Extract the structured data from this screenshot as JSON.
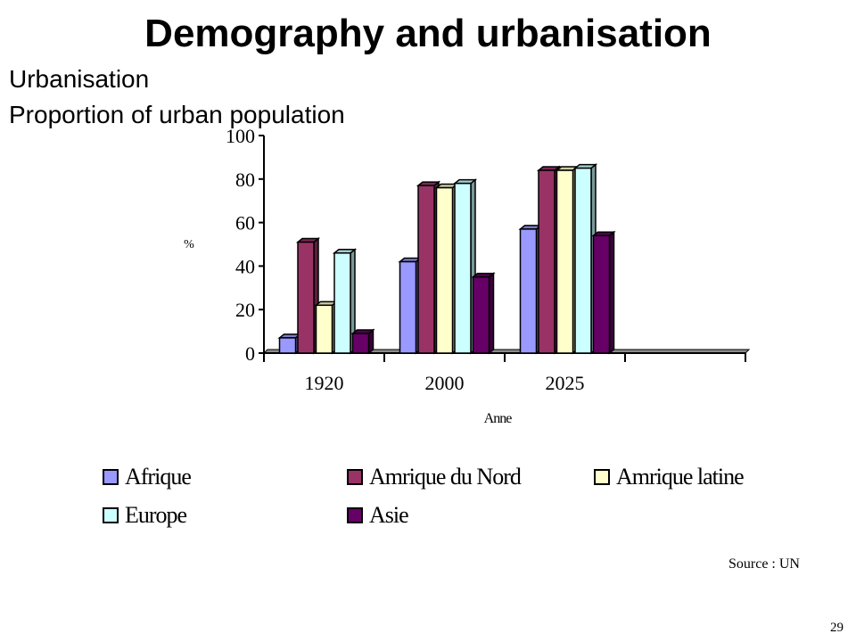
{
  "slide": {
    "title": "Demography and urbanisation",
    "subtitle_1": "Urbanisation",
    "subtitle_2": "Proportion of urban population",
    "source": "Source : UN",
    "page_number": "29"
  },
  "chart_data": {
    "type": "bar",
    "title": "Proportion of urban population",
    "xlabel": "Anne",
    "ylabel": "%",
    "categories": [
      "1920",
      "2000",
      "2025"
    ],
    "ylim": [
      0,
      100
    ],
    "yticks": [
      0,
      20,
      40,
      60,
      80,
      100
    ],
    "grid": false,
    "three_d": true,
    "legend_position": "bottom",
    "series": [
      {
        "name": "Afrique",
        "color": "#9999ff",
        "values": [
          7,
          42,
          57
        ]
      },
      {
        "name": "Amrique du Nord",
        "color": "#993366",
        "values": [
          51,
          77,
          84
        ]
      },
      {
        "name": "Amrique latine",
        "color": "#ffffcc",
        "values": [
          22,
          76,
          84
        ]
      },
      {
        "name": "Europe",
        "color": "#ccffff",
        "values": [
          46,
          78,
          85
        ]
      },
      {
        "name": "Asie",
        "color": "#660066",
        "values": [
          9,
          35,
          54
        ]
      }
    ]
  }
}
